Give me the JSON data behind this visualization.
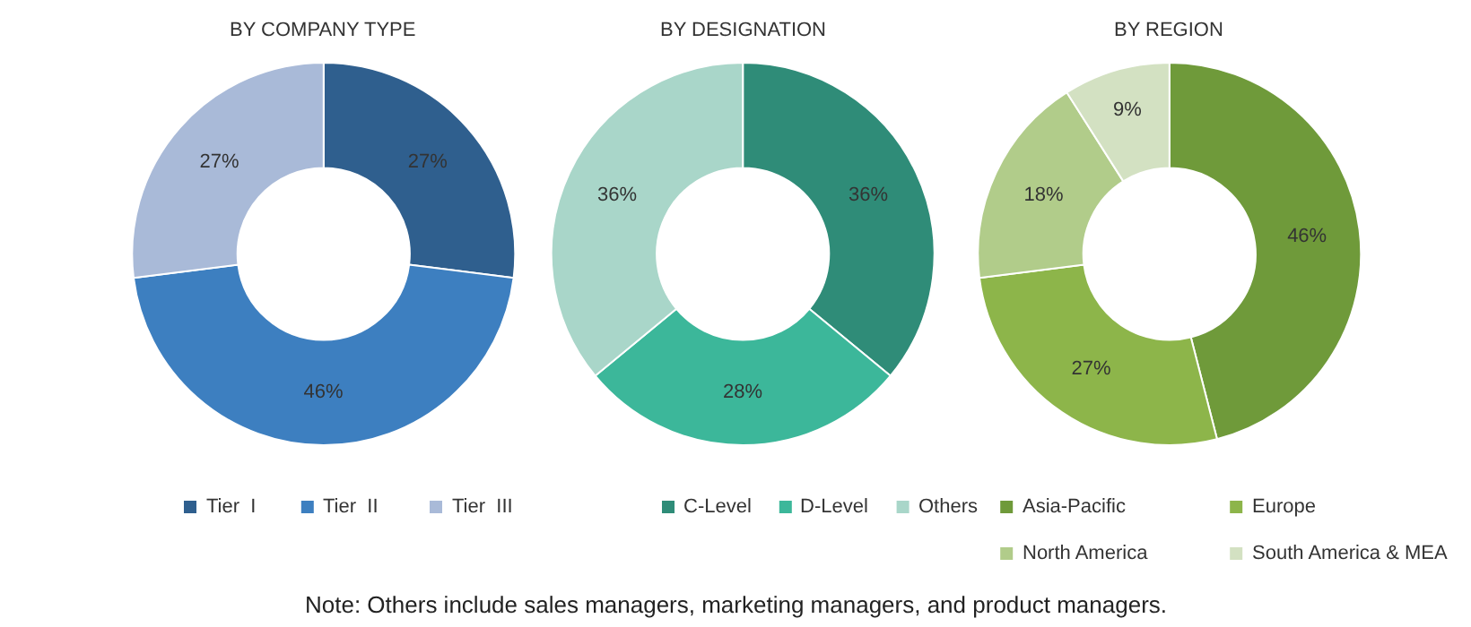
{
  "chart_data": [
    {
      "type": "donut",
      "title": "BY COMPANY TYPE",
      "categories": [
        "Tier  I",
        "Tier  II",
        "Tier  III"
      ],
      "values": [
        27,
        46,
        27
      ],
      "value_labels": [
        "27%",
        "46%",
        "27%"
      ],
      "colors": [
        "#2f5f8e",
        "#3d7fc0",
        "#a9bad8"
      ],
      "legend": "bottom",
      "annotations": [
        "Note: Others include sales managers, marketing managers, and product managers."
      ]
    },
    {
      "type": "donut",
      "title": "BY DESIGNATION",
      "categories": [
        "C-Level",
        "D-Level",
        "Others"
      ],
      "values": [
        36,
        28,
        36
      ],
      "value_labels": [
        "36%",
        "28%",
        "36%"
      ],
      "colors": [
        "#2f8c78",
        "#3cb79a",
        "#a9d6c9"
      ],
      "legend": "bottom"
    },
    {
      "type": "donut",
      "title": "BY REGION",
      "categories": [
        "Asia-Pacific",
        "Europe",
        "North America",
        "South America & MEA"
      ],
      "values": [
        46,
        27,
        18,
        9
      ],
      "value_labels": [
        "46%",
        "27%",
        "18%",
        "9%"
      ],
      "colors": [
        "#6f9a3a",
        "#8db54a",
        "#b1cc8a",
        "#d3e1c2"
      ],
      "legend": "bottom"
    }
  ]
}
